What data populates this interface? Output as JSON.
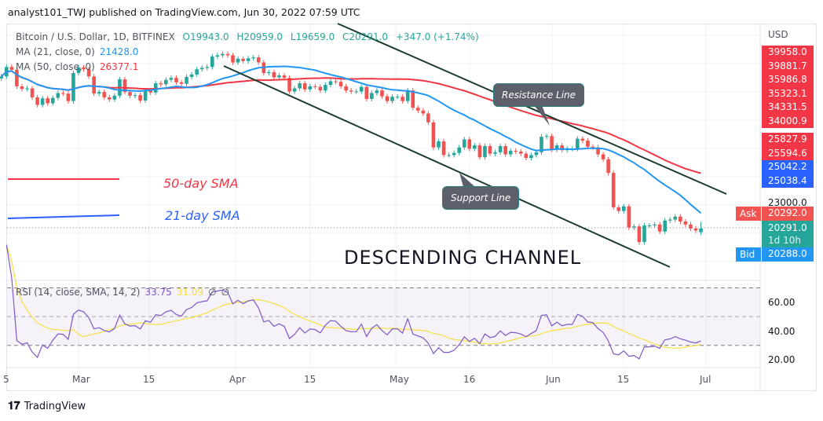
{
  "header": "analyst101_TWJ published on TradingView.com, Jun 30, 2022 07:59 UTC",
  "legend": {
    "symbol": "Bitcoin / U.S. Dollar, 1D, BITFINEX",
    "open": "O19943.0",
    "high": "H20959.0",
    "low": "L19659.0",
    "close": "C20291.0",
    "change": "+347.0 (+1.74%)",
    "ma21_label": "MA (21, close, 0)",
    "ma21_value": "21428.0",
    "ma50_label": "MA (50, close, 0)",
    "ma50_value": "26377.1",
    "rsi_label": "RSI (14, close, SMA, 14, 2)",
    "rsi_value": "33.75",
    "rsi_sma_value": "31.09",
    "rsi_na1": "∅",
    "rsi_na2": "∅"
  },
  "colors": {
    "up": "#26a69a",
    "down": "#ef5350",
    "ma21": "#2196f3",
    "ma50": "#f23645",
    "rsi": "#7e57c2",
    "rsi_sma": "#f7e042",
    "lines": "#1b3b2f"
  },
  "price_axis": {
    "currency": "USD",
    "stack_red": [
      "39958.0",
      "39881.7",
      "35986.8",
      "35323.1",
      "34331.5",
      "34000.9"
    ],
    "stack_red2": [
      "25827.9",
      "25594.6"
    ],
    "stack_blue": [
      "25042.2",
      "25038.4"
    ],
    "tick": "23000.0",
    "ask": "20292.0",
    "last": "20291.0",
    "countdown": "1d 10h",
    "bid": "20288.0",
    "ask_label": "Ask",
    "bid_label": "Bid"
  },
  "rsi_axis": [
    "60.00",
    "40.00",
    "20.00"
  ],
  "x_axis": [
    "5",
    "Mar",
    "15",
    "Apr",
    "15",
    "May",
    "16",
    "Jun",
    "15",
    "Jul"
  ],
  "annotations": {
    "resistance": "Resistance Line",
    "support": "Support Line",
    "channel": "DESCENDING CHANNEL",
    "sma50": "50-day SMA",
    "sma21": "21-day SMA"
  },
  "brand": "TradingView",
  "chart_data": {
    "type": "candlestick",
    "start_date": "2022-02-14",
    "scale": "log",
    "closes": [
      42500,
      44500,
      43900,
      40500,
      40000,
      40100,
      38400,
      37000,
      38200,
      37300,
      38300,
      39200,
      39100,
      37700,
      43200,
      44400,
      44000,
      42500,
      39100,
      39400,
      38400,
      38000,
      38700,
      41900,
      39400,
      38700,
      38800,
      37800,
      39700,
      39300,
      41100,
      40900,
      41800,
      42200,
      41300,
      41000,
      42400,
      42900,
      44000,
      44300,
      44500,
      46800,
      47100,
      47400,
      47100,
      45500,
      46300,
      45800,
      46400,
      46600,
      45500,
      43200,
      43400,
      42300,
      42700,
      42200,
      39500,
      40100,
      41100,
      39900,
      40500,
      40400,
      39700,
      40800,
      41500,
      41400,
      40500,
      39700,
      39500,
      39500,
      40400,
      38100,
      39200,
      39700,
      38600,
      37700,
      38500,
      38500,
      37700,
      39700,
      36500,
      36000,
      35500,
      34000,
      30100,
      31000,
      29000,
      29000,
      29300,
      30100,
      31300,
      29900,
      30400,
      28700,
      30300,
      29200,
      29400,
      30300,
      29100,
      29600,
      29500,
      29200,
      28600,
      29000,
      29400,
      31700,
      31800,
      29800,
      30400,
      29700,
      29900,
      29900,
      31400,
      31100,
      30200,
      30100,
      29100,
      28400,
      26600,
      22500,
      22100,
      22600,
      20400,
      20500,
      19000,
      20600,
      20600,
      20700,
      20000,
      21100,
      21200,
      21500,
      21000,
      20700,
      20300,
      20100,
      20291
    ],
    "last_open": 19943,
    "last_high": 20959,
    "last_low": 19659,
    "rsi_levels": [
      70,
      30
    ]
  }
}
